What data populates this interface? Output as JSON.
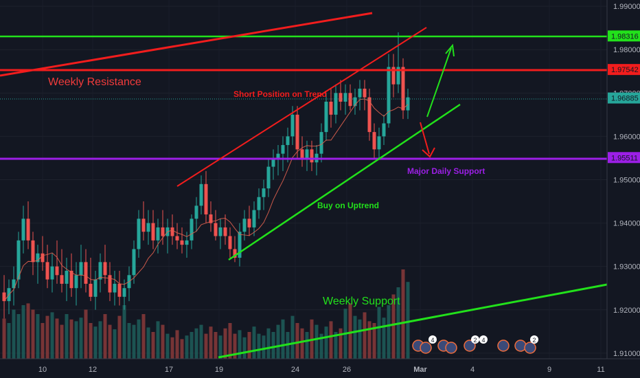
{
  "chart_data": {
    "type": "candlestick",
    "y_range": [
      1.9095,
      1.9905
    ],
    "y_ticks": [
      "1.99000",
      "1.98000",
      "1.97000",
      "1.96000",
      "1.95000",
      "1.94000",
      "1.93000",
      "1.92000",
      "1.91000"
    ],
    "x_ticks": [
      "10",
      "12",
      "17",
      "19",
      "24",
      "26",
      "Mar",
      "4",
      "9",
      "11"
    ],
    "price_levels": [
      {
        "label": "1.98316",
        "value": 1.98316,
        "color": "#22e11b"
      },
      {
        "label": "1.97542",
        "value": 1.97542,
        "color": "#f21d1d"
      },
      {
        "label": "1.96885",
        "value": 1.96885,
        "color": "#26a69a"
      },
      {
        "label": "1.95511",
        "value": 1.95511,
        "color": "#9c1fe6"
      }
    ],
    "annotations": {
      "weekly_resistance": "Weekly Resistance",
      "short_position": "Short Position on Trend",
      "major_daily_support": "Major Daily Support",
      "buy_on_uptrend": "Buy on Uptrend",
      "weekly_support": "Weekly Support"
    },
    "event_badges": [
      "4",
      "2",
      "4",
      "2"
    ],
    "candles_ohlc": [
      [
        1.924,
        1.928,
        1.918,
        1.922
      ],
      [
        1.922,
        1.927,
        1.919,
        1.925
      ],
      [
        1.925,
        1.93,
        1.921,
        1.927
      ],
      [
        1.927,
        1.938,
        1.925,
        1.936
      ],
      [
        1.936,
        1.944,
        1.933,
        1.941
      ],
      [
        1.941,
        1.945,
        1.934,
        1.936
      ],
      [
        1.936,
        1.938,
        1.928,
        1.931
      ],
      [
        1.931,
        1.935,
        1.926,
        1.933
      ],
      [
        1.933,
        1.937,
        1.929,
        1.931
      ],
      [
        1.931,
        1.935,
        1.925,
        1.927
      ],
      [
        1.927,
        1.933,
        1.924,
        1.93
      ],
      [
        1.93,
        1.936,
        1.926,
        1.928
      ],
      [
        1.928,
        1.934,
        1.924,
        1.926
      ],
      [
        1.926,
        1.932,
        1.922,
        1.929
      ],
      [
        1.929,
        1.933,
        1.923,
        1.925
      ],
      [
        1.925,
        1.931,
        1.921,
        1.928
      ],
      [
        1.928,
        1.935,
        1.925,
        1.931
      ],
      [
        1.931,
        1.934,
        1.924,
        1.926
      ],
      [
        1.926,
        1.932,
        1.922,
        1.923
      ],
      [
        1.923,
        1.929,
        1.92,
        1.927
      ],
      [
        1.927,
        1.933,
        1.924,
        1.931
      ],
      [
        1.931,
        1.935,
        1.926,
        1.928
      ],
      [
        1.928,
        1.931,
        1.922,
        1.924
      ],
      [
        1.924,
        1.929,
        1.921,
        1.926
      ],
      [
        1.926,
        1.929,
        1.921,
        1.923
      ],
      [
        1.923,
        1.927,
        1.92,
        1.925
      ],
      [
        1.925,
        1.93,
        1.922,
        1.928
      ],
      [
        1.928,
        1.936,
        1.926,
        1.934
      ],
      [
        1.934,
        1.943,
        1.932,
        1.941
      ],
      [
        1.941,
        1.945,
        1.936,
        1.938
      ],
      [
        1.938,
        1.943,
        1.935,
        1.94
      ],
      [
        1.94,
        1.943,
        1.934,
        1.936
      ],
      [
        1.936,
        1.941,
        1.933,
        1.939
      ],
      [
        1.939,
        1.943,
        1.935,
        1.937
      ],
      [
        1.937,
        1.941,
        1.933,
        1.939
      ],
      [
        1.939,
        1.942,
        1.935,
        1.937
      ],
      [
        1.937,
        1.94,
        1.934,
        1.936
      ],
      [
        1.936,
        1.939,
        1.933,
        1.935
      ],
      [
        1.935,
        1.938,
        1.932,
        1.936
      ],
      [
        1.936,
        1.942,
        1.934,
        1.941
      ],
      [
        1.941,
        1.946,
        1.938,
        1.944
      ],
      [
        1.944,
        1.951,
        1.942,
        1.949
      ],
      [
        1.949,
        1.952,
        1.94,
        1.942
      ],
      [
        1.942,
        1.945,
        1.938,
        1.94
      ],
      [
        1.94,
        1.943,
        1.936,
        1.937
      ],
      [
        1.937,
        1.941,
        1.934,
        1.939
      ],
      [
        1.939,
        1.942,
        1.935,
        1.937
      ],
      [
        1.937,
        1.939,
        1.932,
        1.934
      ],
      [
        1.934,
        1.937,
        1.931,
        1.932
      ],
      [
        1.932,
        1.94,
        1.93,
        1.938
      ],
      [
        1.938,
        1.943,
        1.936,
        1.941
      ],
      [
        1.941,
        1.944,
        1.937,
        1.939
      ],
      [
        1.939,
        1.945,
        1.937,
        1.943
      ],
      [
        1.943,
        1.948,
        1.941,
        1.946
      ],
      [
        1.946,
        1.95,
        1.943,
        1.948
      ],
      [
        1.948,
        1.955,
        1.946,
        1.953
      ],
      [
        1.953,
        1.957,
        1.95,
        1.955
      ],
      [
        1.955,
        1.958,
        1.951,
        1.956
      ],
      [
        1.956,
        1.96,
        1.952,
        1.958
      ],
      [
        1.958,
        1.962,
        1.954,
        1.96
      ],
      [
        1.96,
        1.967,
        1.958,
        1.965
      ],
      [
        1.965,
        1.967,
        1.955,
        1.957
      ],
      [
        1.957,
        1.96,
        1.953,
        1.955
      ],
      [
        1.955,
        1.959,
        1.952,
        1.957
      ],
      [
        1.957,
        1.959,
        1.952,
        1.954
      ],
      [
        1.954,
        1.958,
        1.951,
        1.956
      ],
      [
        1.956,
        1.963,
        1.954,
        1.961
      ],
      [
        1.961,
        1.97,
        1.959,
        1.968
      ],
      [
        1.968,
        1.971,
        1.962,
        1.965
      ],
      [
        1.965,
        1.972,
        1.963,
        1.97
      ],
      [
        1.97,
        1.973,
        1.966,
        1.968
      ],
      [
        1.968,
        1.972,
        1.965,
        1.97
      ],
      [
        1.97,
        1.972,
        1.966,
        1.967
      ],
      [
        1.967,
        1.971,
        1.965,
        1.969
      ],
      [
        1.969,
        1.973,
        1.966,
        1.971
      ],
      [
        1.971,
        1.973,
        1.966,
        1.969
      ],
      [
        1.969,
        1.971,
        1.959,
        1.961
      ],
      [
        1.961,
        1.963,
        1.955,
        1.957
      ],
      [
        1.957,
        1.962,
        1.955,
        1.96
      ],
      [
        1.96,
        1.965,
        1.958,
        1.963
      ],
      [
        1.963,
        1.979,
        1.962,
        1.976
      ],
      [
        1.976,
        1.979,
        1.969,
        1.972
      ],
      [
        1.972,
        1.984,
        1.97,
        1.976
      ],
      [
        1.976,
        1.978,
        1.964,
        1.966
      ],
      [
        1.966,
        1.971,
        1.964,
        1.969
      ]
    ],
    "volumes": [
      0.45,
      0.4,
      0.55,
      0.5,
      0.6,
      0.62,
      0.55,
      0.5,
      0.4,
      0.48,
      0.52,
      0.45,
      0.38,
      0.5,
      0.44,
      0.42,
      0.46,
      0.55,
      0.4,
      0.36,
      0.42,
      0.5,
      0.38,
      0.33,
      0.48,
      0.6,
      0.4,
      0.38,
      0.44,
      0.5,
      0.35,
      0.3,
      0.42,
      0.38,
      0.28,
      0.24,
      0.32,
      0.22,
      0.26,
      0.3,
      0.34,
      0.38,
      0.28,
      0.36,
      0.3,
      0.26,
      0.34,
      0.4,
      0.28,
      0.32,
      0.24,
      0.3,
      0.36,
      0.28,
      0.26,
      0.34,
      0.3,
      0.38,
      0.44,
      0.3,
      0.48,
      0.4,
      0.34,
      0.3,
      0.44,
      0.38,
      0.28,
      0.36,
      0.42,
      0.3,
      0.34,
      0.56,
      0.62,
      0.48,
      0.44,
      0.52,
      0.42,
      0.4,
      0.58,
      0.46,
      0.6,
      0.72,
      0.8,
      1.0,
      0.86
    ]
  }
}
